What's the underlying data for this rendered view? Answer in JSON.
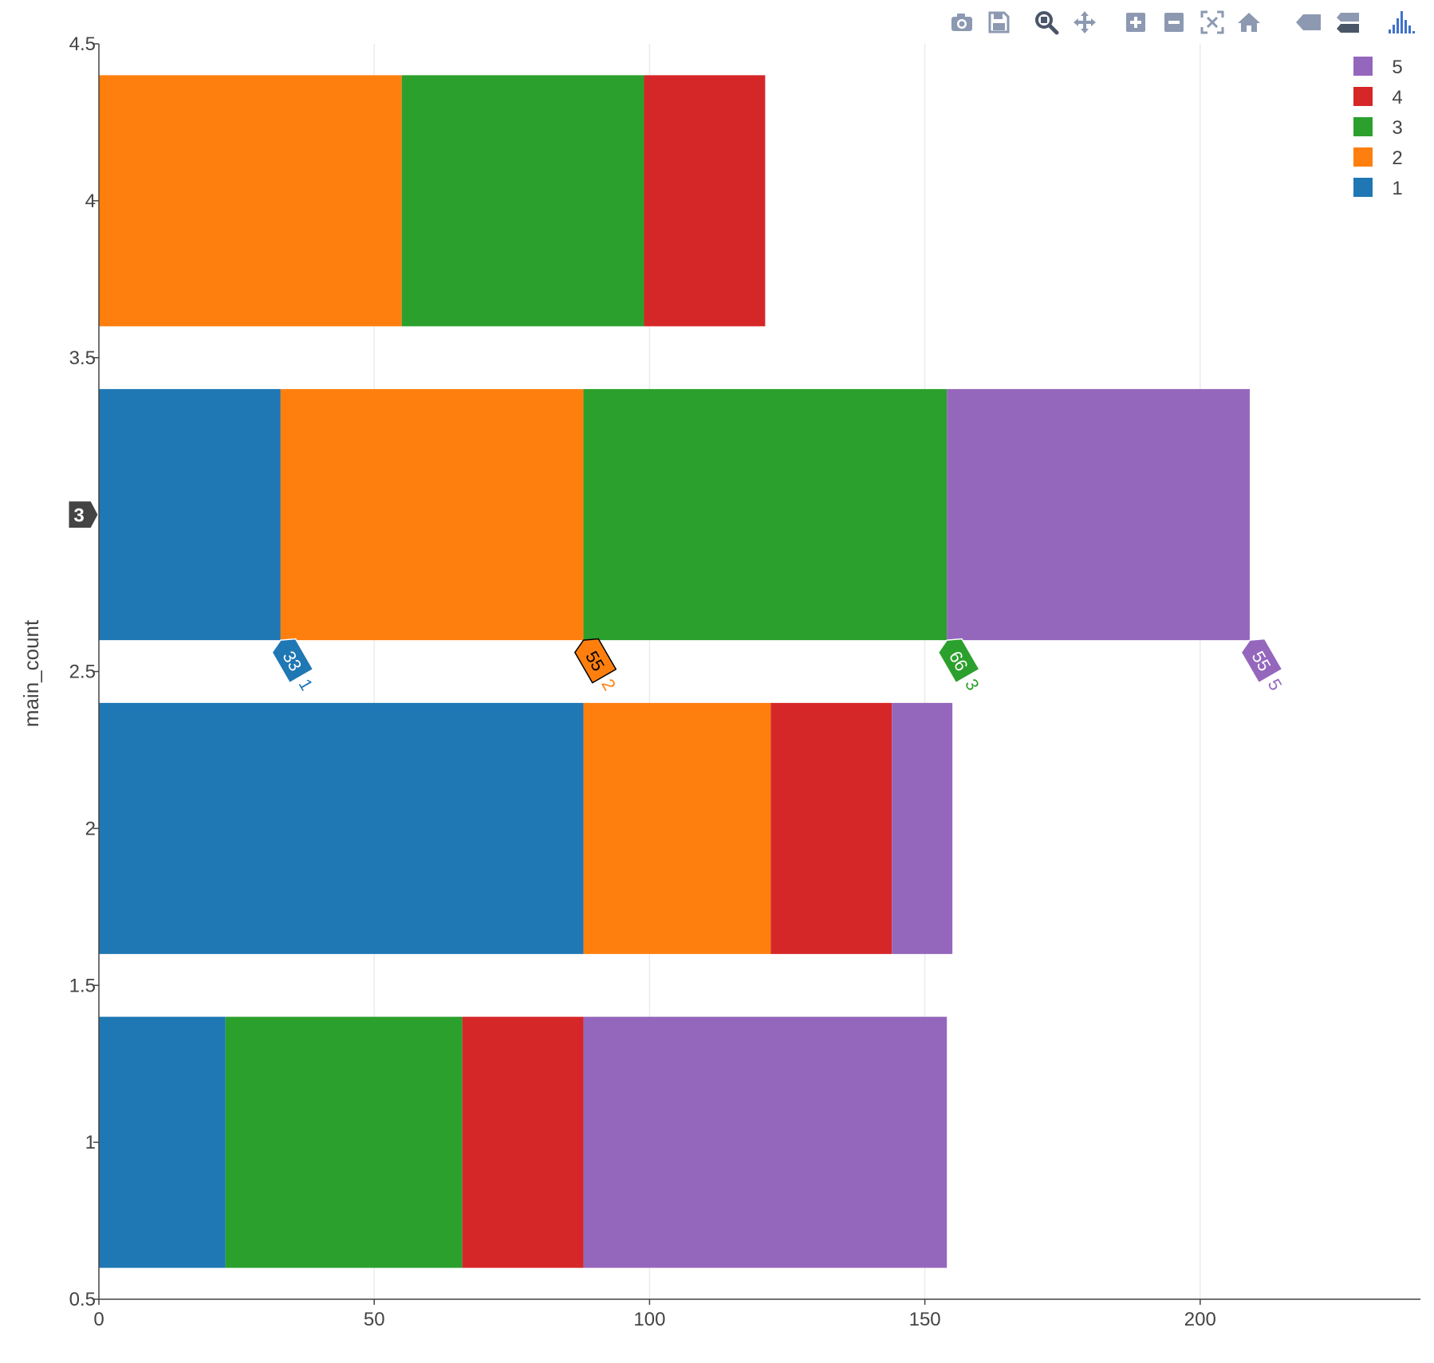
{
  "chart_data": {
    "type": "bar",
    "orientation": "horizontal",
    "barmode": "stack",
    "categories": [
      1,
      2,
      3,
      4
    ],
    "series": [
      {
        "name": "1",
        "color": "#1f77b4",
        "values": [
          23,
          88,
          33,
          0
        ]
      },
      {
        "name": "2",
        "color": "#ff7f0e",
        "values": [
          0,
          34,
          55,
          55
        ]
      },
      {
        "name": "3",
        "color": "#2ca02c",
        "values": [
          43,
          0,
          66,
          44
        ]
      },
      {
        "name": "4",
        "color": "#d62728",
        "values": [
          22,
          22,
          0,
          22
        ]
      },
      {
        "name": "5",
        "color": "#9467bd",
        "values": [
          66,
          11,
          55,
          0
        ]
      }
    ],
    "xlim": [
      0,
      240
    ],
    "ylim": [
      0.5,
      4.5
    ],
    "x_ticks": [
      "0",
      "50",
      "100",
      "150",
      "200"
    ],
    "x_tick_values": [
      0,
      50,
      100,
      150,
      200
    ],
    "y_ticks": [
      "0.5",
      "1",
      "1.5",
      "2",
      "2.5",
      "3",
      "3.5",
      "4",
      "4.5"
    ],
    "y_tick_values": [
      0.5,
      1,
      1.5,
      2,
      2.5,
      3,
      3.5,
      4,
      4.5
    ],
    "ylabel": "main_count",
    "xlabel": "",
    "grid": "vertical",
    "legend_position": "top-right",
    "legend_order": [
      "5",
      "4",
      "3",
      "2",
      "1"
    ],
    "hover": {
      "category_label": "3",
      "category": 3,
      "labels": [
        {
          "series": "1",
          "value": "33"
        },
        {
          "series": "2",
          "value": "55"
        },
        {
          "series": "3",
          "value": "66"
        },
        {
          "series": "5",
          "value": "55"
        }
      ]
    }
  },
  "modebar": {
    "buttons": [
      {
        "name": "camera-icon",
        "title": "Download plot as a png"
      },
      {
        "name": "save-icon",
        "title": "Save"
      },
      {
        "name": "zoom-icon",
        "title": "Zoom"
      },
      {
        "name": "pan-icon",
        "title": "Pan"
      },
      {
        "name": "zoom-in-icon",
        "title": "Zoom in"
      },
      {
        "name": "zoom-out-icon",
        "title": "Zoom out"
      },
      {
        "name": "autoscale-icon",
        "title": "Autoscale"
      },
      {
        "name": "home-icon",
        "title": "Reset axes"
      },
      {
        "name": "spike-icon",
        "title": "Show closest data on hover"
      },
      {
        "name": "compare-icon",
        "title": "Compare data on hover"
      },
      {
        "name": "plotly-logo-icon",
        "title": "Produced with Plotly"
      }
    ],
    "icon_color": "#8c99b1",
    "active_color": "#4a5568",
    "logo_color": "#3f72c9"
  }
}
